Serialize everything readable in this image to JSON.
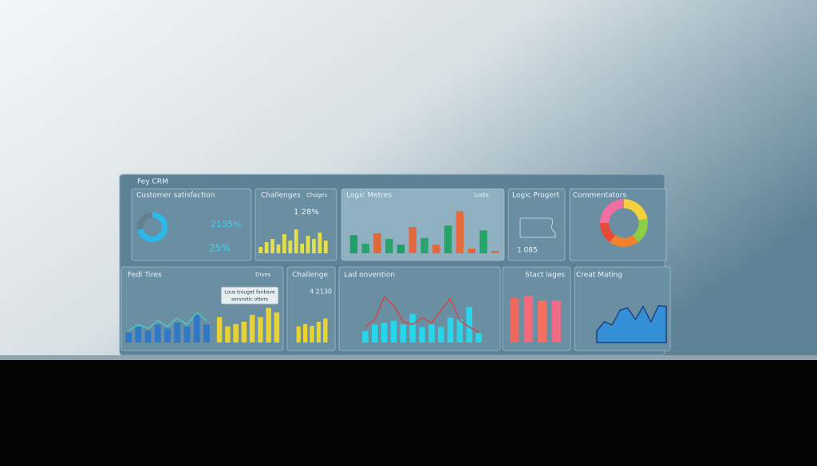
{
  "header": {
    "title": "Fey CRM"
  },
  "panels": [
    {
      "title": "Customer satisfaction",
      "texts": [
        "2135%",
        "25%"
      ],
      "chart": {
        "series": [
          {
            "type": "donut",
            "values": [
              72,
              28
            ],
            "colors": [
              "#2bb8ea",
              "#647f8f"
            ]
          }
        ]
      }
    },
    {
      "title": "Challenges",
      "texts": [
        "Choges",
        "1 28%"
      ],
      "chart": {
        "ylim": [
          0,
          100
        ],
        "series": [
          {
            "type": "bar",
            "color": "#e6df4c",
            "values": [
              20,
              35,
              45,
              28,
              60,
              40,
              75,
              30,
              55,
              45,
              65,
              40
            ]
          }
        ]
      }
    },
    {
      "title": "Logic Metres",
      "texts": [
        "Lodie"
      ],
      "chart": {
        "ylim": [
          0,
          100
        ],
        "series": [
          {
            "type": "bar",
            "values": [
              38,
              20,
              42,
              30,
              18,
              55,
              32,
              18,
              58,
              88,
              10,
              48,
              5
            ],
            "colors": [
              "#1f9e6a",
              "#2aa36c",
              "#e0693a",
              "#2aa36c",
              "#1f9e6a",
              "#e4683d",
              "#2aa36c",
              "#e4683d",
              "#23a56a",
              "#e56a3d",
              "#e4683d",
              "#23a56a",
              "#e4683d"
            ]
          }
        ]
      }
    },
    {
      "title": "Logic Progert",
      "texts": [
        "1 085"
      ]
    },
    {
      "title": "Commentators",
      "chart": {
        "series": [
          {
            "type": "donut",
            "values": [
              22,
              18,
              20,
              15,
              25
            ],
            "colors": [
              "#f2d13c",
              "#8ccf45",
              "#f0812f",
              "#e84a3a",
              "#f06ea2"
            ]
          }
        ]
      }
    },
    {
      "title": "Fedl Tires",
      "texts": [
        "Dives",
        "Lous trouget fanbsve",
        "sersnstic otters"
      ],
      "chart": {
        "ylim": [
          0,
          100
        ],
        "series": [
          {
            "type": "bar",
            "color": "#2f78c8",
            "values": [
              25,
              40,
              30,
              45,
              35,
              50,
              40,
              70,
              45
            ]
          },
          {
            "type": "line",
            "color": "#46d0c4",
            "values": [
              30,
              45,
              35,
              55,
              40,
              62,
              45,
              75,
              55
            ]
          },
          {
            "type": "bar",
            "color": "#e6d236",
            "values": [
              55,
              35,
              40,
              45,
              60,
              55,
              75,
              65
            ]
          }
        ]
      }
    },
    {
      "title": "Challenge",
      "texts": [
        "4 2130"
      ],
      "chart": {
        "ylim": [
          0,
          100
        ],
        "series": [
          {
            "type": "bar",
            "color": "#e8d330",
            "values": [
              48,
              55,
              50,
              62,
              72
            ]
          }
        ]
      }
    },
    {
      "title": "Lad onvention",
      "chart": {
        "ylim": [
          0,
          100
        ],
        "series": [
          {
            "type": "bar",
            "color": "#27d6ea",
            "values": [
              22,
              35,
              38,
              42,
              35,
              55,
              30,
              35,
              30,
              48,
              45,
              68,
              18
            ]
          },
          {
            "type": "line",
            "color": "#d64545",
            "values": [
              30,
              45,
              88,
              72,
              40,
              35,
              48,
              38,
              62,
              85,
              42,
              30,
              20
            ]
          }
        ]
      }
    },
    {
      "title": "Stact lages",
      "chart": {
        "ylim": [
          0,
          100
        ],
        "series": [
          {
            "type": "bar",
            "values": [
              90,
              95,
              85,
              85
            ],
            "colors": [
              "#f0675e",
              "#f26a7a",
              "#f57060",
              "#ef6b86"
            ]
          }
        ]
      }
    },
    {
      "title": "Creat Mating",
      "chart": {
        "ylim": [
          0,
          100
        ],
        "series": [
          {
            "type": "area",
            "color": "#2a8fe0",
            "values": [
              25,
              45,
              38,
              70,
              75,
              50,
              78,
              45,
              80,
              78
            ]
          }
        ]
      }
    }
  ]
}
